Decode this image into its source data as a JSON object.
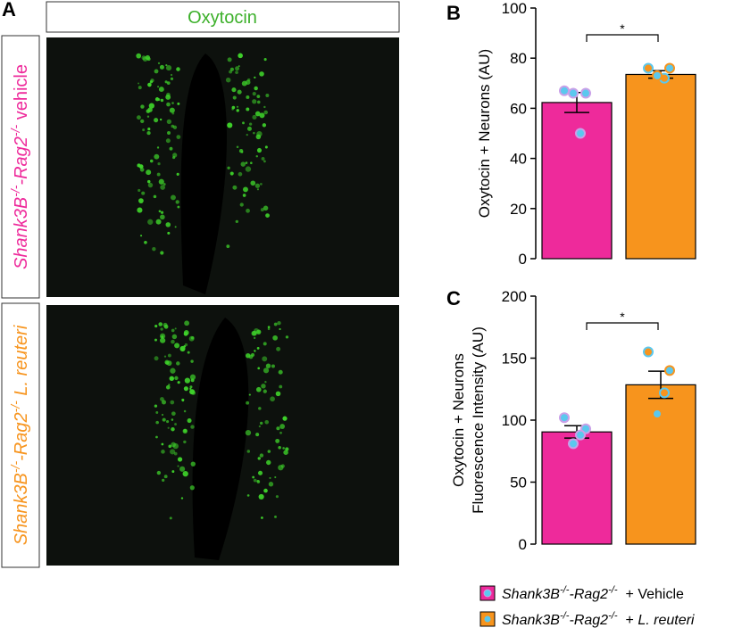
{
  "panel_a": {
    "label": "A",
    "title": "Oxytocin",
    "rows": [
      {
        "color": "#ee2a9b",
        "parts": [
          {
            "text": "Shank3B",
            "italic": true
          },
          {
            "text": "-/-",
            "italic": true,
            "sup": true
          },
          {
            "text": "-Rag2",
            "italic": true
          },
          {
            "text": "-/-",
            "italic": true,
            "sup": true
          },
          {
            "text": " vehicle"
          }
        ]
      },
      {
        "color": "#f7941d",
        "parts": [
          {
            "text": "Shank3B",
            "italic": true
          },
          {
            "text": "-/-",
            "italic": true,
            "sup": true
          },
          {
            "text": "-Rag2",
            "italic": true
          },
          {
            "text": "-/-",
            "italic": true,
            "sup": true
          },
          {
            "text": " L. reuteri",
            "italic": true
          }
        ]
      }
    ]
  },
  "chart_data": [
    {
      "type": "bar",
      "panel_label": "B",
      "ylabel": [
        "Oxytocin + Neurons (AU)"
      ],
      "ylim": [
        0,
        100
      ],
      "yticks": [
        0,
        20,
        40,
        60,
        80,
        100
      ],
      "significance": "*",
      "point_color": "#5bc8ee",
      "series": [
        {
          "color": "#ee2a9b",
          "values": [
            62.3
          ],
          "error": [
            4
          ],
          "points": [
            67,
            66,
            50,
            66
          ]
        },
        {
          "color": "#f7941d",
          "values": [
            73.5
          ],
          "error": [
            1.5
          ],
          "points": [
            76,
            76,
            72,
            73
          ]
        }
      ]
    },
    {
      "type": "bar",
      "panel_label": "C",
      "ylabel": [
        "Oxytocin + Neurons",
        "Fluorescence Intensity (AU)"
      ],
      "ylim": [
        0,
        200
      ],
      "yticks": [
        0,
        50,
        100,
        150,
        200
      ],
      "significance": "*",
      "point_color": "#5bc8ee",
      "series": [
        {
          "color": "#ee2a9b",
          "values": [
            90.5
          ],
          "error": [
            5
          ],
          "points": [
            102,
            93,
            88,
            81
          ]
        },
        {
          "color": "#f7941d",
          "values": [
            128.5
          ],
          "error": [
            11
          ],
          "points": [
            155,
            140,
            122,
            105
          ]
        }
      ]
    }
  ],
  "legend": {
    "entries": [
      {
        "parts": [
          {
            "text": "Shank3B",
            "italic": true
          },
          {
            "text": "-/-",
            "italic": true,
            "sup": true
          },
          {
            "text": "-Rag2",
            "italic": true
          },
          {
            "text": "-/-",
            "italic": true,
            "sup": true
          },
          {
            "text": "  + Vehicle"
          }
        ]
      },
      {
        "parts": [
          {
            "text": "Shank3B",
            "italic": true
          },
          {
            "text": "-/-",
            "italic": true,
            "sup": true
          },
          {
            "text": "-Rag2",
            "italic": true
          },
          {
            "text": "-/-",
            "italic": true,
            "sup": true
          },
          {
            "text": "  + "
          },
          {
            "text": "L. reuteri",
            "italic": true
          }
        ]
      }
    ]
  }
}
